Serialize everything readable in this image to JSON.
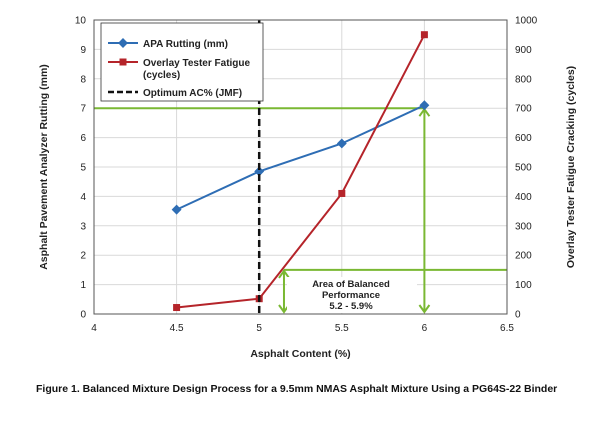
{
  "caption": "Figure 1. Balanced Mixture Design Process for a 9.5mm NMAS Asphalt Mixture Using a PG64S-22 Binder",
  "chart_data": {
    "type": "line",
    "xlabel": "Asphalt Content (%)",
    "ylabel_left": "Asphalt Pavement Analyzer Rutting (mm)",
    "ylabel_right": "Overlay Tester Fatigue Cracking (cycles)",
    "xlim": [
      4,
      6.5
    ],
    "ylim_left": [
      0,
      10
    ],
    "ylim_right": [
      0,
      1000
    ],
    "x_ticks": [
      "4",
      "4.5",
      "5",
      "5.5",
      "6",
      "6.5"
    ],
    "y_left_ticks": [
      "0",
      "1",
      "2",
      "3",
      "4",
      "5",
      "6",
      "7",
      "8",
      "9",
      "10"
    ],
    "y_right_ticks": [
      "0",
      "100",
      "200",
      "300",
      "400",
      "500",
      "600",
      "700",
      "800",
      "900",
      "1000"
    ],
    "grid": true,
    "legend_position": "top-left",
    "legend": {
      "rutting": "APA Rutting (mm)",
      "fatigue_line1": "Overlay Tester Fatigue",
      "fatigue_line2": "(cycles)",
      "optimum": "Optimum AC% (JMF)"
    },
    "series": [
      {
        "key": "rutting",
        "axis": "left",
        "color": "#2e6db4",
        "marker": "diamond",
        "x": [
          4.5,
          5.0,
          5.5,
          6.0
        ],
        "y": [
          3.55,
          4.85,
          5.8,
          7.1
        ]
      },
      {
        "key": "fatigue",
        "axis": "right",
        "color": "#b5242a",
        "marker": "square",
        "x": [
          4.5,
          5.0,
          5.5,
          6.0
        ],
        "y": [
          22,
          52,
          410,
          950
        ]
      }
    ],
    "optimum_ac": 5.0,
    "threshold_rutting": 7.0,
    "threshold_fatigue": 150,
    "balanced_range": [
      5.15,
      5.95
    ],
    "annotation": {
      "line1": "Area of Balanced",
      "line2": "Performance",
      "line3": "5.2 - 5.9%"
    },
    "colors": {
      "rutting": "#2e6db4",
      "fatigue": "#b5242a",
      "threshold": "#7ab833",
      "optimum": "#111111",
      "grid": "#d9d9d9"
    }
  }
}
